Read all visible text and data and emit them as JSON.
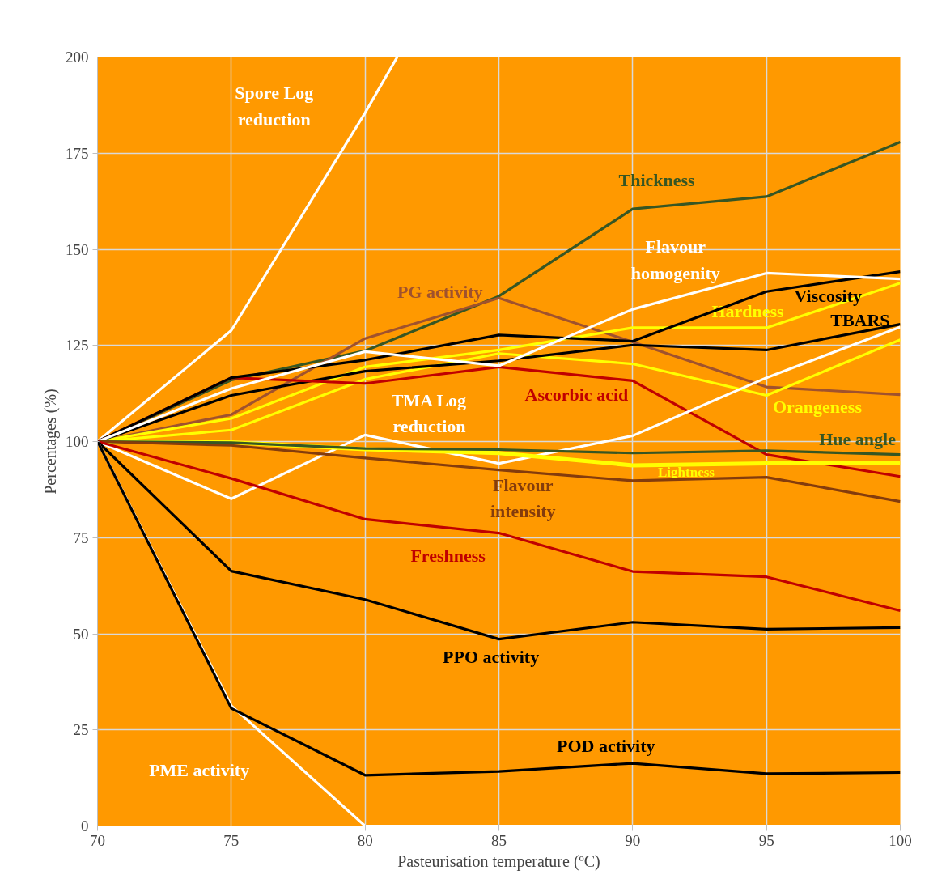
{
  "chart_data": {
    "type": "line",
    "xlabel": "Pasteurisation temperature (ºC)",
    "ylabel": "Percentages (%)",
    "x": [
      70,
      75,
      80,
      85,
      90,
      95,
      100
    ],
    "xlim": [
      70,
      100
    ],
    "xticks": [
      70,
      75,
      80,
      85,
      90,
      95,
      100
    ],
    "ylim": [
      0,
      200
    ],
    "yticks": [
      0,
      25,
      50,
      75,
      100,
      125,
      150,
      175,
      200
    ],
    "grid": true,
    "legend": false,
    "series": [
      {
        "name": "Spore Log\nreduction",
        "color": "#ffffff",
        "x": [
          70,
          75,
          80,
          81.2
        ],
        "values": [
          100,
          128.9,
          185.5,
          200
        ]
      },
      {
        "name": "Thickness",
        "color": "#375623",
        "values": [
          100,
          116,
          123.6,
          137.8,
          160.5,
          163.7,
          177.9
        ]
      },
      {
        "name": "PG activity",
        "color": "#a0522d",
        "values": [
          100,
          107,
          126.8,
          137.3,
          125.9,
          114.2,
          112.2
        ]
      },
      {
        "name": "Hardness",
        "color": "#ffff00",
        "values": [
          100,
          106,
          119.4,
          123.8,
          129.6,
          129.6,
          141.2
        ]
      },
      {
        "name": "Orangeness",
        "color": "#ffff00",
        "values": [
          100,
          103,
          116.2,
          122.9,
          120.2,
          112,
          126.5
        ]
      },
      {
        "name": "TBARS",
        "color": "#000000",
        "values": [
          100,
          112,
          118.3,
          121,
          125.1,
          123.8,
          130.5
        ]
      },
      {
        "name": "Ascorbic acid",
        "color": "#c00000",
        "values": [
          100,
          116.6,
          115.1,
          119.4,
          115.8,
          96.6,
          90.9
        ]
      },
      {
        "name": "Viscosity",
        "color": "#000000",
        "values": [
          100,
          116.6,
          121.2,
          127.7,
          126.1,
          139,
          144.2
        ]
      },
      {
        "name": "Flavour\nhomogenity",
        "color": "#ffffff",
        "values": [
          100,
          113.8,
          123.4,
          119.7,
          134.4,
          143.8,
          142.3
        ]
      },
      {
        "name": "TMA Log\nreduction",
        "color": "#ffffff",
        "values": [
          100,
          85.1,
          101.7,
          94.3,
          101.5,
          116.6,
          129.8
        ]
      },
      {
        "name": "Lightness",
        "color": "#ffff00",
        "values": [
          100,
          99.8,
          98,
          97,
          93.8,
          94.3,
          94.5
        ]
      },
      {
        "name": "Hue angle",
        "color": "#375623",
        "values": [
          100,
          99.7,
          98.2,
          97.9,
          97,
          97.6,
          96.6
        ]
      },
      {
        "name": "Flavour\nintensity",
        "color": "#843c0c",
        "values": [
          100,
          99,
          95.7,
          92.6,
          89.8,
          90.7,
          84.4
        ]
      },
      {
        "name": "Freshness",
        "color": "#c00000",
        "values": [
          100,
          90.4,
          79.8,
          76.2,
          66.2,
          64.8,
          56
        ]
      },
      {
        "name": "PPO activity",
        "color": "#000000",
        "values": [
          100,
          66.3,
          58.9,
          48.6,
          53,
          51.2,
          51.6
        ]
      },
      {
        "name": "PME activity",
        "color": "#ffffff",
        "values": [
          100,
          31.3,
          0,
          0,
          0,
          0,
          0
        ]
      },
      {
        "name": "POD activity",
        "color": "#000000",
        "values": [
          100,
          30.6,
          13.2,
          14.2,
          16.3,
          13.6,
          13.9
        ]
      }
    ]
  }
}
